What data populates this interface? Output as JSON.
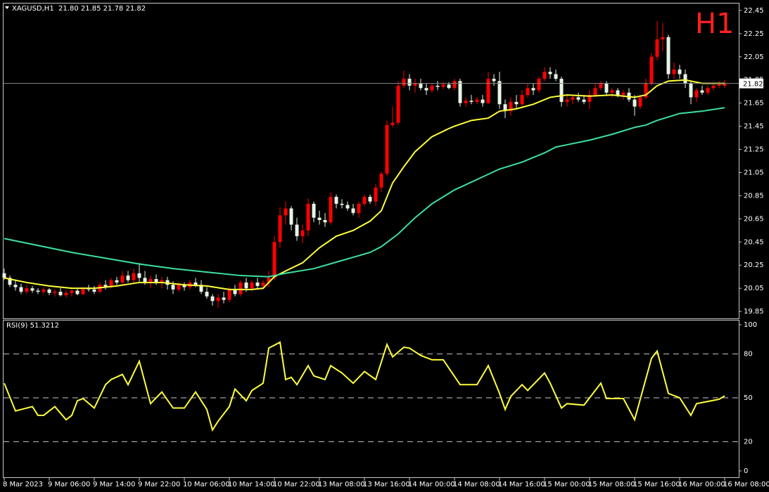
{
  "chart_data": [
    {
      "type": "candlestick",
      "title": "XAGUSD,H1  21.80 21.85 21.78 21.82",
      "timeframe_label": "H1",
      "categories": [
        "8 Mar 2023",
        null,
        null,
        null,
        null,
        null,
        null,
        null,
        "9 Mar 06:00",
        null,
        null,
        null,
        null,
        null,
        null,
        null,
        "9 Mar 14:00",
        null,
        null,
        null,
        null,
        null,
        null,
        null,
        "9 Mar 22:00",
        null,
        null,
        null,
        null,
        null,
        null,
        null,
        "10 Mar 06:00",
        null,
        null,
        null,
        null,
        null,
        null,
        null,
        "10 Mar 14:00",
        null,
        null,
        null,
        null,
        null,
        null,
        null,
        "10 Mar 22:00",
        null,
        null,
        null,
        null,
        null,
        null,
        null,
        "13 Mar 08:00",
        null,
        null,
        null,
        null,
        null,
        null,
        null,
        "13 Mar 16:00",
        null,
        null,
        null,
        null,
        null,
        null,
        null,
        "14 Mar 00:00",
        null,
        null,
        null,
        null,
        null,
        null,
        null,
        "14 Mar 08:00",
        null,
        null,
        null,
        null,
        null,
        null,
        null,
        "14 Mar 16:00",
        null,
        null,
        null,
        null,
        null,
        null,
        null,
        "15 Mar 00:00",
        null,
        null,
        null,
        null,
        null,
        null,
        null,
        "15 Mar 08:00",
        null,
        null,
        null,
        null,
        null,
        null,
        null,
        "15 Mar 16:00",
        null,
        null,
        null,
        null,
        null,
        null,
        null,
        "16 Mar 00:00",
        null,
        null,
        null,
        null,
        null,
        null,
        null,
        "16 Mar 08:00"
      ],
      "open": [
        20.18,
        20.14,
        20.08,
        20.06,
        20.02,
        20.05,
        20.03,
        20.02,
        20.04,
        20.01,
        20.02,
        19.99,
        20.01,
        20.03,
        20.0,
        20.05,
        20.04,
        20.02,
        20.08,
        20.06,
        20.12,
        20.1,
        20.16,
        20.12,
        20.18,
        20.14,
        20.1,
        20.13,
        20.1,
        20.12,
        20.08,
        20.04,
        20.08,
        20.06,
        20.1,
        20.08,
        20.02,
        19.98,
        19.94,
        19.97,
        19.95,
        20.04,
        20.0,
        20.1,
        20.05,
        20.1,
        20.07,
        20.1,
        20.14,
        20.45,
        20.68,
        20.74,
        20.6,
        20.5,
        20.55,
        20.78,
        20.66,
        20.64,
        20.62,
        20.84,
        20.78,
        20.77,
        20.74,
        20.7,
        20.78,
        20.84,
        20.8,
        20.92,
        21.04,
        21.46,
        21.48,
        21.8,
        21.86,
        21.8,
        21.82,
        21.78,
        21.76,
        21.8,
        21.79,
        21.81,
        21.78,
        21.84,
        21.65,
        21.67,
        21.66,
        21.68,
        21.65,
        21.86,
        21.84,
        21.64,
        21.58,
        21.66,
        21.64,
        21.72,
        21.78,
        21.76,
        21.86,
        21.92,
        21.9,
        21.86,
        21.66,
        21.68,
        21.7,
        21.68,
        21.66,
        21.72,
        21.78,
        21.82,
        21.74,
        21.76,
        21.72,
        21.74,
        21.68,
        21.62,
        21.7,
        21.82,
        22.05,
        22.2,
        22.22,
        21.9,
        21.94,
        21.9,
        21.82,
        21.7,
        21.76,
        21.74,
        21.78,
        21.8,
        21.8
      ],
      "high": [
        20.22,
        20.16,
        20.12,
        20.09,
        20.08,
        20.07,
        20.05,
        20.06,
        20.05,
        20.04,
        20.05,
        20.03,
        20.04,
        20.05,
        20.06,
        20.08,
        20.07,
        20.1,
        20.12,
        20.14,
        20.15,
        20.2,
        20.2,
        20.22,
        20.27,
        20.2,
        20.16,
        20.17,
        20.15,
        20.15,
        20.11,
        20.1,
        20.1,
        20.12,
        20.14,
        20.12,
        20.06,
        20.0,
        20.0,
        20.02,
        20.06,
        20.08,
        20.12,
        20.14,
        20.12,
        20.14,
        20.12,
        20.2,
        20.5,
        20.75,
        20.8,
        20.76,
        20.66,
        20.6,
        20.83,
        20.8,
        20.72,
        20.7,
        20.88,
        20.86,
        20.82,
        20.8,
        20.78,
        20.8,
        20.86,
        20.86,
        20.95,
        21.06,
        21.5,
        21.62,
        21.84,
        21.93,
        21.9,
        21.86,
        21.86,
        21.82,
        21.82,
        21.84,
        21.83,
        21.83,
        21.86,
        21.86,
        21.7,
        21.72,
        21.7,
        21.72,
        21.92,
        21.9,
        21.92,
        21.68,
        21.7,
        21.72,
        21.76,
        21.82,
        21.82,
        21.88,
        21.96,
        21.96,
        21.94,
        21.88,
        21.72,
        21.72,
        21.74,
        21.72,
        21.76,
        21.82,
        21.84,
        21.84,
        21.78,
        21.78,
        21.76,
        21.78,
        21.72,
        21.72,
        21.86,
        22.08,
        22.36,
        22.34,
        22.24,
        22.0,
        21.98,
        21.94,
        21.84,
        21.78,
        21.8,
        21.8,
        21.82,
        21.84,
        21.85
      ],
      "low": [
        20.12,
        20.06,
        20.03,
        20.0,
        20.0,
        20.01,
        20.0,
        20.0,
        19.99,
        19.98,
        19.98,
        19.97,
        19.98,
        19.99,
        19.99,
        20.02,
        20.0,
        20.01,
        20.04,
        20.05,
        20.08,
        20.08,
        20.1,
        20.1,
        20.1,
        20.08,
        20.05,
        20.08,
        20.05,
        20.04,
        20.0,
        20.02,
        20.03,
        20.04,
        20.06,
        20.0,
        19.96,
        19.9,
        19.88,
        19.92,
        19.93,
        19.98,
        19.98,
        20.02,
        20.03,
        20.04,
        20.04,
        20.06,
        20.12,
        20.4,
        20.6,
        20.55,
        20.46,
        20.44,
        20.5,
        20.62,
        20.6,
        20.58,
        20.6,
        20.74,
        20.74,
        20.72,
        20.68,
        20.66,
        20.76,
        20.78,
        20.76,
        20.88,
        21.02,
        21.44,
        21.46,
        21.78,
        21.76,
        21.74,
        21.76,
        21.72,
        21.74,
        21.76,
        21.77,
        21.77,
        21.76,
        21.62,
        21.62,
        21.64,
        21.64,
        21.62,
        21.64,
        21.8,
        21.6,
        21.52,
        21.54,
        21.6,
        21.62,
        21.7,
        21.72,
        21.74,
        21.84,
        21.86,
        21.84,
        21.62,
        21.62,
        21.64,
        21.66,
        21.64,
        21.6,
        21.7,
        21.76,
        21.72,
        21.7,
        21.7,
        21.68,
        21.66,
        21.54,
        21.6,
        21.68,
        21.8,
        22.02,
        22.1,
        21.86,
        21.86,
        21.86,
        21.78,
        21.64,
        21.66,
        21.72,
        21.72,
        21.76,
        21.78,
        21.78
      ],
      "close": [
        20.14,
        20.08,
        20.06,
        20.02,
        20.05,
        20.03,
        20.02,
        20.04,
        20.01,
        20.02,
        19.99,
        20.01,
        20.03,
        20.0,
        20.05,
        20.04,
        20.02,
        20.08,
        20.06,
        20.12,
        20.1,
        20.16,
        20.12,
        20.18,
        20.14,
        20.1,
        20.13,
        20.1,
        20.12,
        20.08,
        20.04,
        20.08,
        20.06,
        20.1,
        20.08,
        20.02,
        19.98,
        19.94,
        19.97,
        19.95,
        20.04,
        20.0,
        20.1,
        20.05,
        20.1,
        20.07,
        20.1,
        20.14,
        20.45,
        20.68,
        20.74,
        20.6,
        20.5,
        20.55,
        20.78,
        20.66,
        20.64,
        20.62,
        20.84,
        20.78,
        20.77,
        20.74,
        20.7,
        20.78,
        20.84,
        20.8,
        20.92,
        21.04,
        21.46,
        21.48,
        21.8,
        21.86,
        21.8,
        21.82,
        21.78,
        21.76,
        21.8,
        21.79,
        21.81,
        21.78,
        21.84,
        21.65,
        21.67,
        21.66,
        21.68,
        21.65,
        21.86,
        21.84,
        21.64,
        21.58,
        21.66,
        21.64,
        21.72,
        21.78,
        21.76,
        21.86,
        21.92,
        21.9,
        21.86,
        21.66,
        21.68,
        21.7,
        21.68,
        21.66,
        21.72,
        21.78,
        21.82,
        21.74,
        21.76,
        21.72,
        21.74,
        21.68,
        21.62,
        21.7,
        21.82,
        22.05,
        22.2,
        22.22,
        21.9,
        21.94,
        21.9,
        21.82,
        21.7,
        21.76,
        21.74,
        21.78,
        21.8,
        21.81,
        21.82
      ],
      "up_color": "#ff0000",
      "down_color": "#e6f5e6",
      "price_line_color": "#8a8a8a",
      "lines": [
        {
          "color": "#ffff3c",
          "x": [
            0,
            4,
            8,
            12,
            16,
            20,
            24,
            28,
            32,
            36,
            40,
            44,
            46,
            48,
            50,
            53,
            56,
            59,
            62,
            65,
            67,
            69,
            71,
            73,
            76,
            79,
            80,
            83,
            86,
            88,
            91,
            94,
            97,
            100,
            104,
            108,
            112,
            114,
            116,
            118,
            121,
            124,
            128
          ],
          "values": [
            20.14,
            20.1,
            20.07,
            20.05,
            20.05,
            20.07,
            20.1,
            20.1,
            20.08,
            20.07,
            20.04,
            20.04,
            20.05,
            20.15,
            20.2,
            20.27,
            20.4,
            20.5,
            20.55,
            20.63,
            20.72,
            20.96,
            21.1,
            21.23,
            21.36,
            21.43,
            21.45,
            21.5,
            21.52,
            21.58,
            21.6,
            21.64,
            21.7,
            21.72,
            21.71,
            21.72,
            21.7,
            21.72,
            21.8,
            21.84,
            21.85,
            21.82,
            21.82
          ]
        },
        {
          "color": "#3ce0a0",
          "x": [
            0,
            6,
            12,
            18,
            24,
            30,
            36,
            42,
            47,
            50,
            55,
            60,
            65,
            67,
            70,
            73,
            76,
            80,
            84,
            88,
            92,
            96,
            98,
            100,
            104,
            108,
            112,
            114,
            116,
            118,
            120,
            124,
            128
          ],
          "values": [
            20.48,
            20.42,
            20.36,
            20.31,
            20.26,
            20.22,
            20.19,
            20.16,
            20.15,
            20.18,
            20.22,
            20.29,
            20.36,
            20.41,
            20.52,
            20.66,
            20.78,
            20.9,
            20.99,
            21.08,
            21.14,
            21.22,
            21.27,
            21.29,
            21.33,
            21.38,
            21.44,
            21.46,
            21.5,
            21.53,
            21.56,
            21.58,
            21.61
          ]
        }
      ],
      "ylim": [
        19.79,
        22.51
      ],
      "yticks": [
        22.45,
        22.25,
        22.05,
        21.85,
        21.65,
        21.45,
        21.25,
        21.05,
        20.85,
        20.65,
        20.45,
        20.25,
        20.05,
        19.85
      ]
    },
    {
      "type": "line",
      "title": "RSI(9) 51.3212",
      "series": [
        {
          "color": "#ffff3c",
          "x": [
            0,
            2,
            4,
            5,
            6,
            7,
            8,
            9,
            11,
            12,
            13,
            14,
            16,
            18,
            19,
            21,
            22,
            24,
            26,
            28,
            30,
            32,
            34,
            36,
            37,
            38,
            40,
            41,
            43,
            44,
            46,
            47,
            49,
            50,
            51,
            52,
            54,
            55,
            57,
            58,
            60,
            62,
            64,
            66,
            68,
            69,
            71,
            72,
            74,
            76,
            78,
            81,
            82,
            84,
            86,
            88,
            89,
            90,
            92,
            93,
            96,
            97,
            99,
            100,
            103,
            106,
            107,
            110,
            112,
            115,
            116,
            118,
            120,
            122,
            123,
            127,
            128
          ],
          "values": [
            60,
            41,
            43,
            44,
            38,
            38,
            41,
            44,
            35,
            38,
            48,
            49.5,
            43,
            59,
            62.5,
            66,
            59,
            75,
            46,
            54,
            43,
            43,
            54,
            42,
            28,
            34,
            44,
            56,
            48,
            55,
            60,
            84,
            88,
            62.5,
            64,
            59,
            72,
            65,
            62.5,
            72,
            67,
            60,
            68,
            62.5,
            86.5,
            78,
            84.6,
            84,
            79,
            76,
            76,
            59,
            59,
            59,
            72,
            53,
            42,
            51,
            59,
            55,
            67,
            60,
            43,
            46,
            45,
            60,
            49.5,
            49.5,
            35,
            77,
            82,
            53,
            50,
            38,
            46,
            49,
            51.3212
          ]
        }
      ],
      "ylim": [
        0,
        100
      ],
      "yticks": [
        0,
        20,
        50,
        80,
        100
      ]
    }
  ]
}
